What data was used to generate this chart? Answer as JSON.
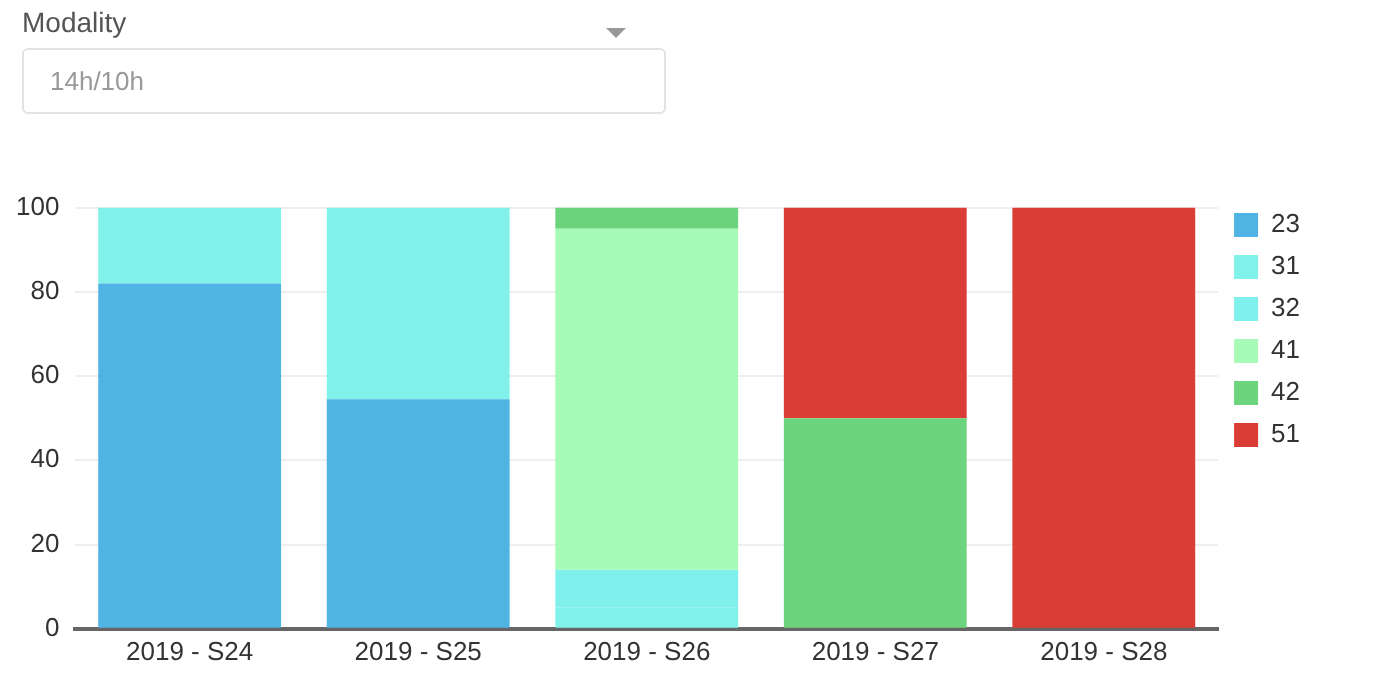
{
  "chart_data": {
    "type": "bar",
    "stacked": true,
    "annotations": [
      "Modality",
      "14h/10h"
    ],
    "categories": [
      "2019 - S24",
      "2019 - S25",
      "2019 - S26",
      "2019 - S27",
      "2019 - S28"
    ],
    "series": [
      {
        "name": "23",
        "color": "#4fb3e3",
        "values": [
          82,
          54.5,
          null,
          null,
          null
        ]
      },
      {
        "name": "31",
        "color": "#80f2ea",
        "values": [
          18,
          45.5,
          5,
          null,
          null
        ]
      },
      {
        "name": "32",
        "color": "#80f0ec",
        "values": [
          null,
          null,
          9,
          null,
          null
        ]
      },
      {
        "name": "41",
        "color": "#a8fbb6",
        "values": [
          null,
          null,
          81,
          null,
          null
        ]
      },
      {
        "name": "42",
        "color": "#6dd47e",
        "values": [
          null,
          null,
          5,
          50,
          null
        ]
      },
      {
        "name": "51",
        "color": "#d93d35",
        "values": [
          null,
          null,
          null,
          50,
          100
        ]
      }
    ],
    "ylim": [
      0,
      100
    ],
    "yticks": [
      0,
      20,
      40,
      60,
      80,
      100
    ],
    "grid": "y",
    "legend": "right"
  }
}
